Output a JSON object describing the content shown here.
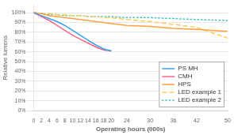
{
  "chart_data": {
    "type": "line",
    "xlabel": "Operating hours (000s)",
    "ylabel": "Relative lumens",
    "series": [
      {
        "name": "PS MH",
        "line_style": "solid",
        "x": [
          0,
          2,
          4,
          6,
          8,
          10,
          12,
          14,
          16,
          18,
          20
        ],
        "values": [
          1.0,
          0.97,
          0.94,
          0.91,
          0.87,
          0.82,
          0.77,
          0.72,
          0.67,
          0.63,
          0.61
        ]
      },
      {
        "name": "CMH",
        "line_style": "solid",
        "x": [
          0,
          2,
          4,
          6,
          8,
          10,
          12,
          14,
          16,
          18,
          20
        ],
        "values": [
          1.0,
          0.96,
          0.92,
          0.87,
          0.82,
          0.77,
          0.73,
          0.69,
          0.65,
          0.62,
          0.61
        ]
      },
      {
        "name": "HPS",
        "line_style": "solid",
        "x": [
          0,
          2,
          4,
          6,
          8,
          10,
          12,
          14,
          16,
          18,
          20,
          24,
          30,
          36,
          42,
          50
        ],
        "values": [
          1.0,
          0.99,
          0.97,
          0.96,
          0.95,
          0.94,
          0.93,
          0.92,
          0.91,
          0.9,
          0.89,
          0.87,
          0.86,
          0.84,
          0.83,
          0.81
        ]
      },
      {
        "name": "LED example 1",
        "line_style": "dashed",
        "x": [
          0,
          2,
          4,
          6,
          8,
          10,
          12,
          14,
          16,
          18,
          20,
          24,
          30,
          36,
          42,
          50
        ],
        "values": [
          1.0,
          0.99,
          0.99,
          0.98,
          0.98,
          0.97,
          0.97,
          0.96,
          0.96,
          0.95,
          0.95,
          0.93,
          0.91,
          0.88,
          0.85,
          0.74
        ]
      },
      {
        "name": "LED example 2",
        "line_style": "dotted",
        "x": [
          0,
          2,
          4,
          6,
          8,
          10,
          12,
          14,
          16,
          18,
          20,
          24,
          30,
          36,
          42,
          50
        ],
        "values": [
          1.0,
          0.99,
          0.98,
          0.98,
          0.97,
          0.97,
          0.97,
          0.96,
          0.96,
          0.96,
          0.96,
          0.95,
          0.95,
          0.94,
          0.93,
          0.92
        ]
      }
    ],
    "xlim": [
      0,
      50
    ],
    "xticks": [
      0,
      2,
      4,
      6,
      8,
      10,
      12,
      14,
      16,
      18,
      20,
      24,
      30,
      36,
      42,
      50
    ],
    "ylim": [
      0.0,
      1.08
    ],
    "yticks": [
      {
        "value": 0.0,
        "label": "0%"
      },
      {
        "value": 0.1,
        "label": "10%"
      },
      {
        "value": 0.2,
        "label": "20%"
      },
      {
        "value": 0.3,
        "label": "30%"
      },
      {
        "value": 0.4,
        "label": "40%"
      },
      {
        "value": 0.5,
        "label": "50%"
      },
      {
        "value": 0.6,
        "label": "60%"
      },
      {
        "value": 0.7,
        "label": "70%"
      },
      {
        "value": 0.8,
        "label": "80%"
      },
      {
        "value": 0.9,
        "label": "90%"
      },
      {
        "value": 1.0,
        "label": "100%"
      }
    ],
    "grid": "y",
    "legend": "lower right"
  }
}
